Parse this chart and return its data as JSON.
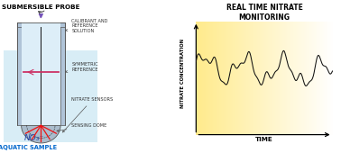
{
  "bg_color": "#ffffff",
  "left_title": "SUBMERSIBLE PROBE",
  "right_title": "REAL TIME NITRATE\nMONITORING",
  "aquatic_sample_label": "AQUATIC SAMPLE",
  "water_color": "#cce8f4",
  "probe_outer_color": "#c8d8e8",
  "probe_inner_color": "#ddeef8",
  "dome_color": "#aabccc",
  "ref_line_color": "#cc3366",
  "stem_color": "#111111",
  "red_sensor_color": "#ee1111",
  "arrow_color": "#7755bb",
  "annot_color": "#333333",
  "ann_arrow_color": "#555555",
  "no3_color": "#2244aa",
  "aquatic_label_color": "#0066cc",
  "wave_color": "#111111",
  "ylabel": "NITRATE CONCENTRATION",
  "xlabel": "TIME",
  "grad_left_color": "#fffce0",
  "grad_right_color": "#ffe88a"
}
